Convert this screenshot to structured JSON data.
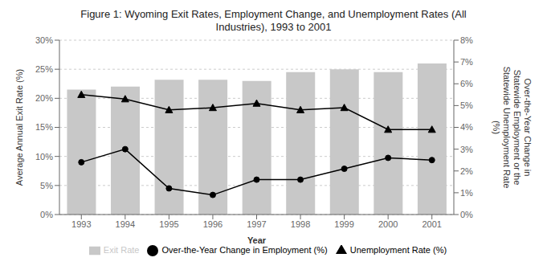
{
  "chart_data": {
    "type": "bar",
    "title": "Figure 1: Wyoming Exit Rates, Employment Change, and Unemployment Rates (All\nIndustries), 1993 to 2001",
    "x_label": "Year",
    "y_label": "Average Annual Exit Rate (%)",
    "y2_label": "Over-the-Year Change in\nStatewide Employment or the\nStatewide Unemployment Rate\n(%)",
    "categories": [
      "1993",
      "1994",
      "1995",
      "1996",
      "1997",
      "1998",
      "1999",
      "2000",
      "2001"
    ],
    "series": [
      {
        "name": "Exit Rate",
        "type": "bar",
        "color": "#c8c8c8",
        "values": [
          21.5,
          22.0,
          23.2,
          23.2,
          23.0,
          24.5,
          25.0,
          24.5,
          26.0
        ]
      },
      {
        "name": "Over-the-Year Change in Employment (%)",
        "type": "line",
        "axis": "y2",
        "color": "#000000",
        "marker": "circle",
        "values": [
          2.4,
          3.0,
          1.2,
          0.9,
          1.6,
          1.6,
          2.1,
          2.6,
          2.5
        ]
      },
      {
        "name": "Unemployment Rate (%)",
        "type": "line",
        "axis": "y2",
        "color": "#000000",
        "marker": "triangle",
        "values": [
          5.5,
          5.3,
          4.8,
          4.9,
          5.1,
          4.8,
          4.9,
          3.9,
          3.9
        ]
      }
    ],
    "ylim": [
      0,
      30
    ],
    "yticks": [
      {
        "value": 0,
        "label": "0%"
      },
      {
        "value": 5,
        "label": "5%"
      },
      {
        "value": 10,
        "label": "10%"
      },
      {
        "value": 15,
        "label": "15%"
      },
      {
        "value": 20,
        "label": "20%"
      },
      {
        "value": 25,
        "label": "25%"
      },
      {
        "value": 30,
        "label": "30%"
      }
    ],
    "y2lim": [
      0,
      8
    ],
    "y2ticks": [
      {
        "value": 0,
        "label": "0%"
      },
      {
        "value": 1,
        "label": "1%"
      },
      {
        "value": 2,
        "label": "2%"
      },
      {
        "value": 3,
        "label": "3%"
      },
      {
        "value": 4,
        "label": "4%"
      },
      {
        "value": 5,
        "label": "5%"
      },
      {
        "value": 6,
        "label": "6%"
      },
      {
        "value": 7,
        "label": "7%"
      },
      {
        "value": 8,
        "label": "8%"
      }
    ],
    "grid": true,
    "legend": "bottom"
  }
}
